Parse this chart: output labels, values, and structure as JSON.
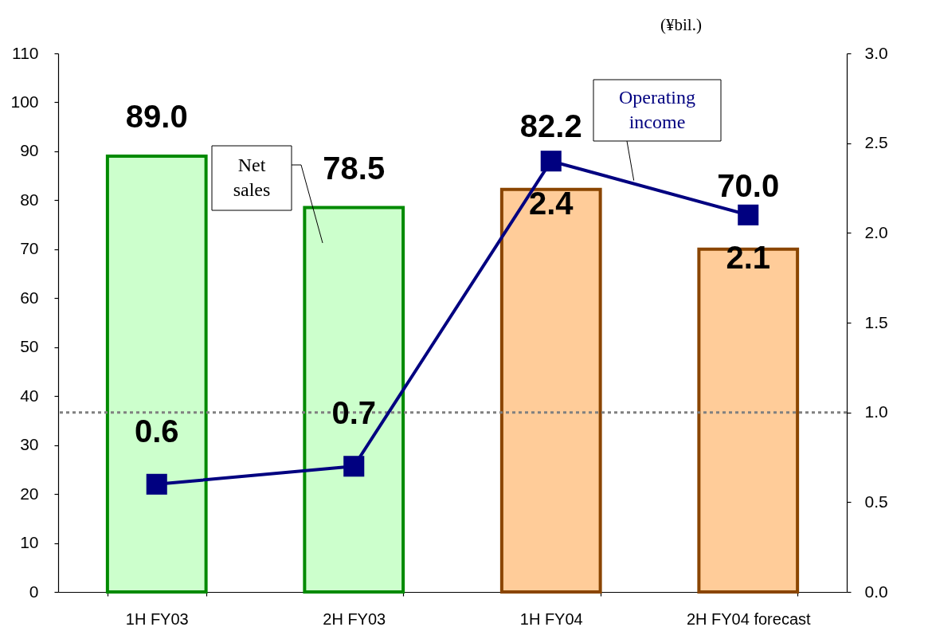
{
  "chart_data": {
    "type": "bar",
    "categories": [
      "1H FY03",
      "2H FY03",
      "1H FY04",
      "2H FY04 forecast"
    ],
    "series": [
      {
        "name": "Net sales",
        "colors": [
          "#ccffcc",
          "#ccffcc",
          "#ffcc99",
          "#ffcc99"
        ],
        "values": [
          89.0,
          78.5,
          82.2,
          70.0
        ],
        "value_labels": [
          "89.0",
          "78.5",
          "82.2",
          "70.0"
        ]
      },
      {
        "name": "Operating income",
        "type": "line",
        "axis": "y2",
        "color": "#000080",
        "marker": "square",
        "line_style": "solid",
        "values": [
          0.6,
          0.7,
          2.4,
          2.1
        ],
        "value_labels": [
          "0.6",
          "0.7",
          "2.4",
          "2.1"
        ]
      }
    ],
    "ylim": [
      0,
      110
    ],
    "yticks": [
      0,
      10,
      20,
      30,
      40,
      50,
      60,
      70,
      80,
      90,
      100,
      110
    ],
    "y2lim": [
      0,
      3.0
    ],
    "y2ticks": [
      {
        "value": 0,
        "label": "0.0"
      },
      0.5,
      {
        "value": 1,
        "label": "1.0"
      },
      1.5,
      {
        "value": 2,
        "label": "2.0"
      },
      2.5,
      {
        "value": 3,
        "label": "3.0"
      }
    ],
    "ref_lines": [
      {
        "axis": "y2",
        "value": 1.0,
        "color": "#808080",
        "line_style": "dotted"
      }
    ],
    "annotations": [
      "(¥bil.)"
    ]
  }
}
